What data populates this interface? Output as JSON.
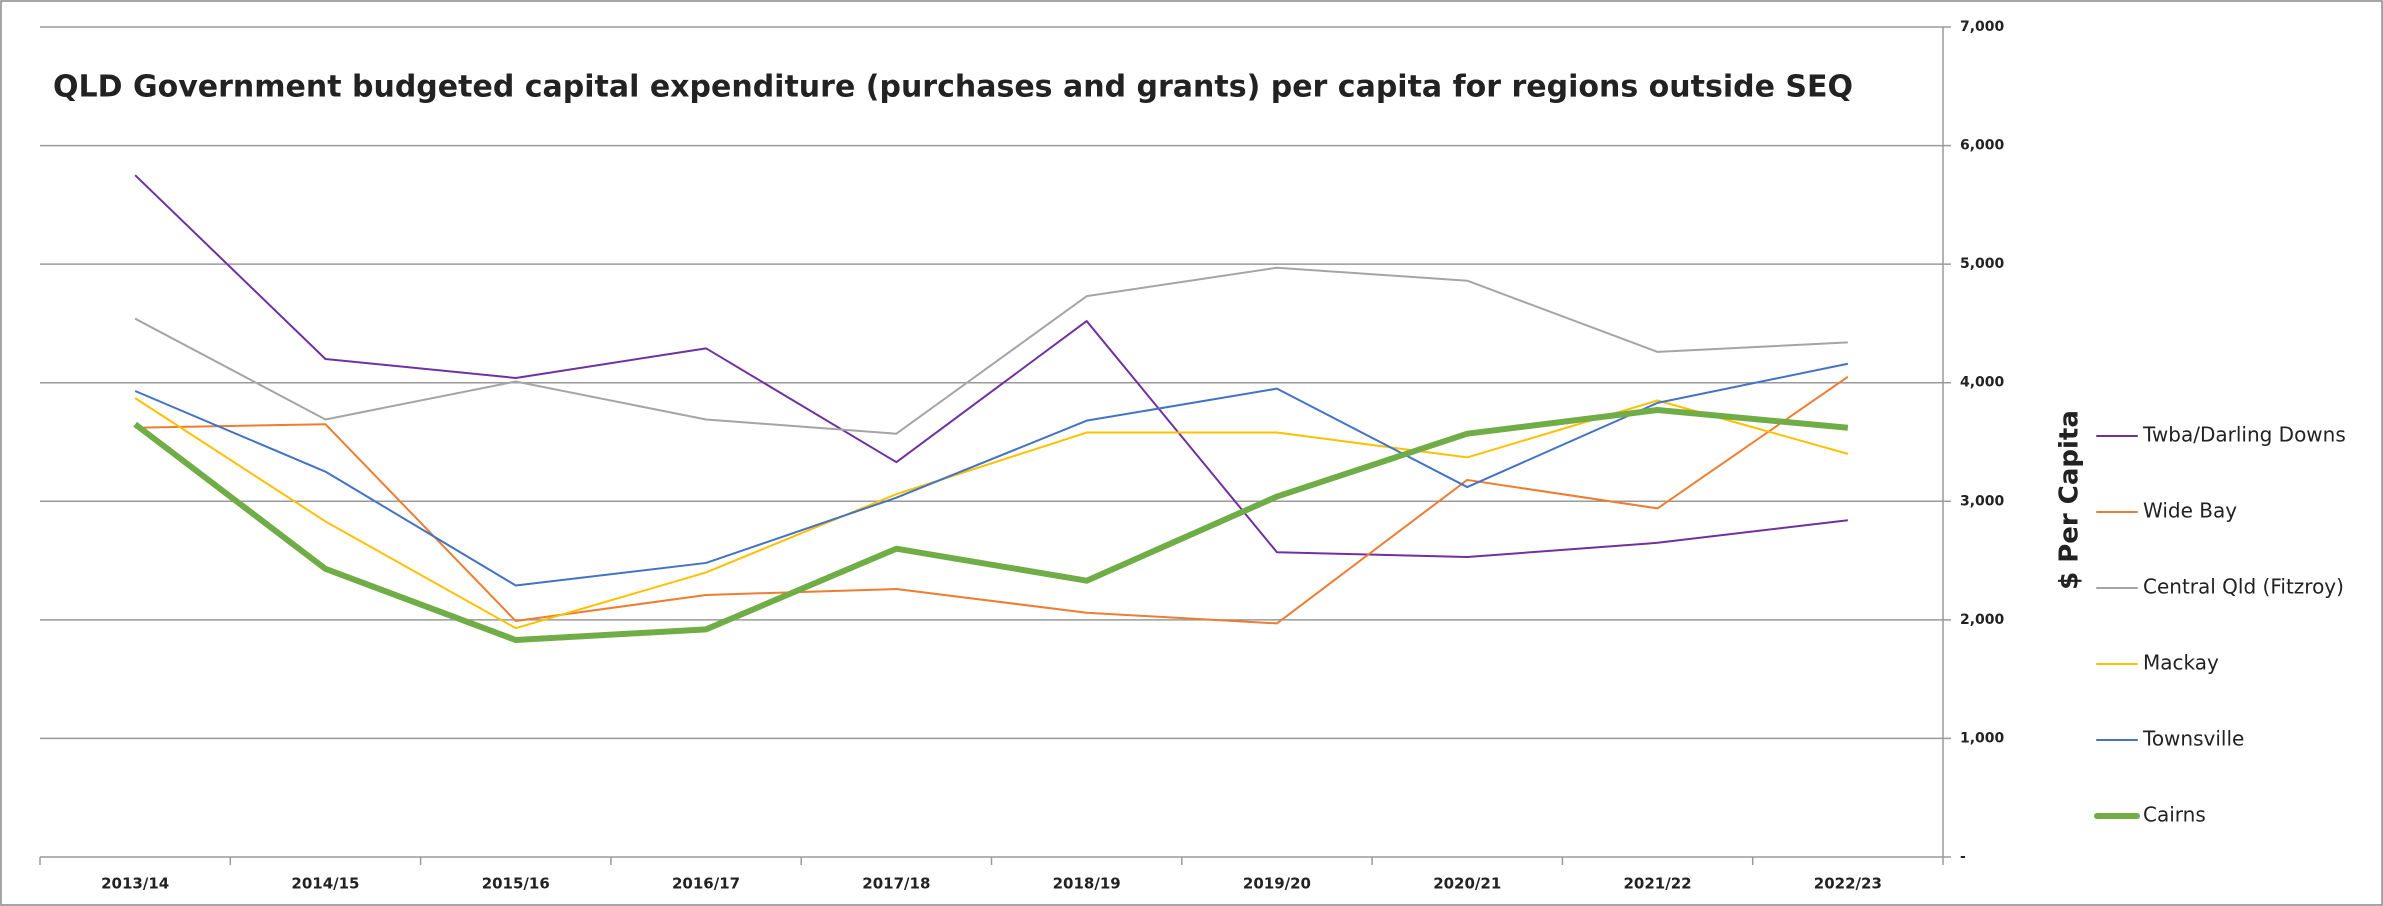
{
  "chart_data": {
    "type": "line",
    "title": "QLD Government budgeted capital expenditure (purchases and grants) per capita for regions outside SEQ",
    "y_label": "$ Per Capita",
    "categories": [
      "2013/14",
      "2014/15",
      "2015/16",
      "2016/17",
      "2017/18",
      "2018/19",
      "2019/20",
      "2020/21",
      "2021/22",
      "2022/23"
    ],
    "series": [
      {
        "name": "Twba/Darling Downs",
        "color": "#7030a0",
        "width": 2,
        "values": [
          5750,
          4200,
          4040,
          4290,
          3330,
          4520,
          2570,
          2530,
          2650,
          2840
        ]
      },
      {
        "name": "Wide Bay",
        "color": "#ed7d31",
        "width": 2,
        "values": [
          3620,
          3650,
          1990,
          2210,
          2260,
          2060,
          1970,
          3180,
          2940,
          4050
        ]
      },
      {
        "name": "Central Qld (Fitzroy)",
        "color": "#a5a5a5",
        "width": 2,
        "values": [
          4540,
          3690,
          4010,
          3690,
          3570,
          4730,
          4970,
          4860,
          4260,
          4340
        ]
      },
      {
        "name": "Mackay",
        "color": "#ffc000",
        "width": 2,
        "values": [
          3870,
          2830,
          1930,
          2400,
          3060,
          3580,
          3580,
          3370,
          3850,
          3400
        ]
      },
      {
        "name": "Townsville",
        "color": "#4472c4",
        "width": 2,
        "values": [
          3930,
          3250,
          2290,
          2480,
          3030,
          3680,
          3950,
          3120,
          3830,
          4160
        ]
      },
      {
        "name": "Cairns",
        "color": "#70ad47",
        "width": 6,
        "values": [
          3650,
          2430,
          1830,
          1920,
          2600,
          2330,
          3040,
          3570,
          3770,
          3620
        ]
      }
    ],
    "ylim": [
      0,
      7000
    ],
    "yticks": [
      {
        "value": 0,
        "label": "-"
      },
      {
        "value": 1000,
        "label": "1,000"
      },
      {
        "value": 2000,
        "label": "2,000"
      },
      {
        "value": 3000,
        "label": "3,000"
      },
      {
        "value": 4000,
        "label": "4,000"
      },
      {
        "value": 5000,
        "label": "5,000"
      },
      {
        "value": 6000,
        "label": "6,000"
      },
      {
        "value": 7000,
        "label": "7,000"
      }
    ],
    "grid": true,
    "legend": "right"
  }
}
